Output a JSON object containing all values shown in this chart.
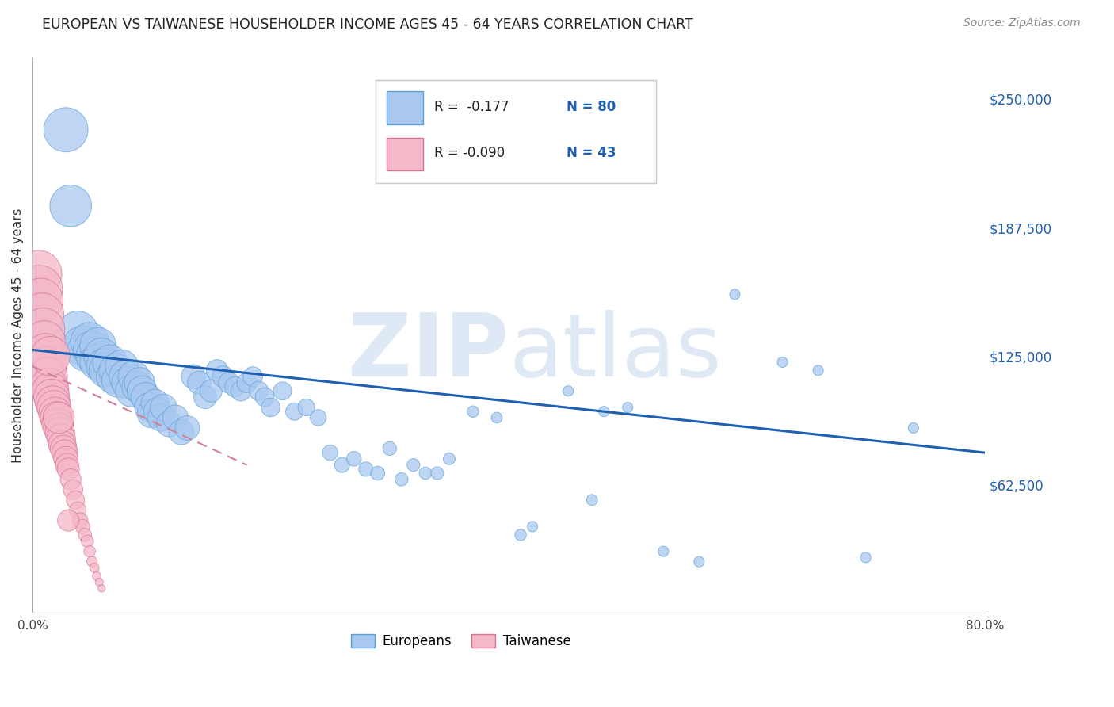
{
  "title": "EUROPEAN VS TAIWANESE HOUSEHOLDER INCOME AGES 45 - 64 YEARS CORRELATION CHART",
  "source": "Source: ZipAtlas.com",
  "ylabel": "Householder Income Ages 45 - 64 years",
  "watermark": "ZIPatlas",
  "xlim": [
    0.0,
    0.8
  ],
  "ylim": [
    0,
    270000
  ],
  "xtick_positions": [
    0.0,
    0.1,
    0.2,
    0.3,
    0.4,
    0.5,
    0.6,
    0.7,
    0.8
  ],
  "xticklabels": [
    "0.0%",
    "",
    "",
    "",
    "",
    "",
    "",
    "",
    "80.0%"
  ],
  "ytick_positions": [
    62500,
    125000,
    187500,
    250000
  ],
  "ytick_labels": [
    "$62,500",
    "$125,000",
    "$187,500",
    "$250,000"
  ],
  "blue_color": "#A8C8F0",
  "blue_edge_color": "#5A9FD4",
  "pink_color": "#F4B8C8",
  "pink_edge_color": "#D47090",
  "blue_line_color": "#2060B0",
  "pink_line_color": "#D08098",
  "legend_R_blue": "R =  -0.177",
  "legend_N_blue": "N = 80",
  "legend_R_pink": "R = -0.090",
  "legend_N_pink": "N = 43",
  "blue_scatter_x": [
    0.028,
    0.032,
    0.038,
    0.042,
    0.045,
    0.048,
    0.05,
    0.052,
    0.055,
    0.055,
    0.058,
    0.06,
    0.062,
    0.065,
    0.068,
    0.07,
    0.072,
    0.075,
    0.078,
    0.08,
    0.083,
    0.085,
    0.088,
    0.09,
    0.092,
    0.095,
    0.098,
    0.1,
    0.103,
    0.105,
    0.108,
    0.11,
    0.115,
    0.12,
    0.125,
    0.13,
    0.135,
    0.14,
    0.145,
    0.15,
    0.155,
    0.16,
    0.165,
    0.17,
    0.175,
    0.18,
    0.185,
    0.19,
    0.195,
    0.2,
    0.21,
    0.22,
    0.23,
    0.24,
    0.25,
    0.26,
    0.27,
    0.28,
    0.29,
    0.3,
    0.31,
    0.32,
    0.33,
    0.35,
    0.37,
    0.39,
    0.42,
    0.45,
    0.48,
    0.5,
    0.53,
    0.56,
    0.59,
    0.63,
    0.66,
    0.7,
    0.74,
    0.34,
    0.41,
    0.47
  ],
  "blue_scatter_y": [
    235000,
    198000,
    137000,
    130000,
    127000,
    132000,
    128000,
    125000,
    130000,
    122000,
    125000,
    120000,
    118000,
    122000,
    115000,
    118000,
    113000,
    120000,
    115000,
    112000,
    108000,
    115000,
    110000,
    112000,
    108000,
    105000,
    100000,
    97000,
    102000,
    98000,
    95000,
    100000,
    92000,
    95000,
    88000,
    90000,
    115000,
    112000,
    105000,
    108000,
    118000,
    115000,
    112000,
    110000,
    108000,
    112000,
    115000,
    108000,
    105000,
    100000,
    108000,
    98000,
    100000,
    95000,
    78000,
    72000,
    75000,
    70000,
    68000,
    80000,
    65000,
    72000,
    68000,
    75000,
    98000,
    95000,
    42000,
    108000,
    98000,
    100000,
    30000,
    25000,
    155000,
    122000,
    118000,
    27000,
    90000,
    68000,
    38000,
    55000
  ],
  "blue_scatter_sizes": [
    180,
    160,
    150,
    145,
    140,
    135,
    130,
    125,
    122,
    120,
    118,
    115,
    112,
    110,
    108,
    105,
    102,
    100,
    98,
    95,
    92,
    90,
    88,
    85,
    83,
    80,
    78,
    75,
    73,
    70,
    68,
    65,
    62,
    60,
    58,
    55,
    53,
    50,
    48,
    45,
    43,
    42,
    40,
    38,
    37,
    36,
    35,
    34,
    33,
    32,
    30,
    28,
    26,
    24,
    22,
    21,
    20,
    19,
    18,
    17,
    16,
    15,
    14,
    13,
    12,
    11,
    10,
    10,
    10,
    10,
    10,
    10,
    10,
    10,
    10,
    10,
    10,
    15,
    12,
    11
  ],
  "pink_scatter_x": [
    0.005,
    0.006,
    0.007,
    0.008,
    0.009,
    0.01,
    0.011,
    0.012,
    0.013,
    0.014,
    0.015,
    0.016,
    0.017,
    0.018,
    0.019,
    0.02,
    0.021,
    0.022,
    0.023,
    0.024,
    0.025,
    0.026,
    0.027,
    0.028,
    0.029,
    0.03,
    0.032,
    0.034,
    0.036,
    0.038,
    0.04,
    0.042,
    0.044,
    0.046,
    0.048,
    0.05,
    0.052,
    0.054,
    0.056,
    0.058,
    0.015,
    0.022,
    0.03
  ],
  "pink_scatter_y": [
    165000,
    158000,
    152000,
    145000,
    138000,
    132000,
    126000,
    120000,
    115000,
    110000,
    108000,
    105000,
    102000,
    100000,
    97000,
    95000,
    92000,
    90000,
    88000,
    85000,
    82000,
    80000,
    78000,
    75000,
    72000,
    70000,
    65000,
    60000,
    55000,
    50000,
    45000,
    42000,
    38000,
    35000,
    30000,
    25000,
    22000,
    18000,
    15000,
    12000,
    125000,
    95000,
    45000
  ],
  "pink_scatter_sizes": [
    200,
    190,
    182,
    175,
    168,
    160,
    152,
    145,
    138,
    132,
    125,
    118,
    112,
    105,
    100,
    95,
    90,
    85,
    80,
    75,
    70,
    65,
    60,
    55,
    50,
    45,
    40,
    35,
    30,
    26,
    22,
    19,
    16,
    14,
    12,
    10,
    8,
    7,
    6,
    5,
    140,
    90,
    42
  ],
  "blue_trendline_x": [
    0.0,
    0.8
  ],
  "blue_trendline_y": [
    128000,
    78000
  ],
  "pink_trendline_x": [
    0.0,
    0.18
  ],
  "pink_trendline_y": [
    120000,
    72000
  ],
  "background_color": "#FFFFFF",
  "grid_color": "#CCCCCC"
}
